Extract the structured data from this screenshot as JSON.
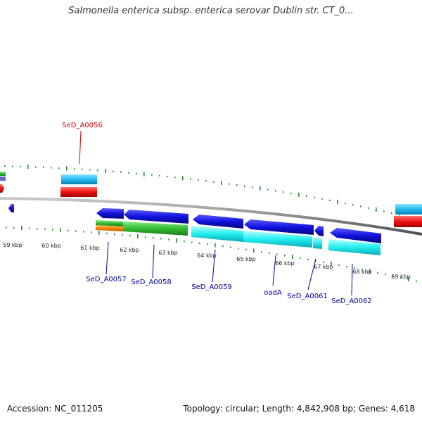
{
  "title": "Salmonella enterica subsp. enterica serovar Dublin str. CT_0...",
  "accession": "Accession: NC_011205",
  "topology": "Topology: circular; Length: 4,842,908 bp; Genes: 4,618",
  "colors": {
    "backbone": "#8c8c8c",
    "ticks": "#2a8a2a",
    "forward_gene": "#22bbee",
    "reverse_gene": "#1111dd",
    "cds_cyan": "#22eeee",
    "rna_red": "#ee1111",
    "green_feature": "#33bb33",
    "orange_feature": "#ff8800",
    "label_blue": "#0000aa",
    "label_red": "#cc0000"
  },
  "kbp_labels": [
    "59 kbp",
    "60 kbp",
    "61 kbp",
    "62 kbp",
    "63 kbp",
    "64 kbp",
    "65 kbp",
    "66 kbp",
    "67 kbp",
    "68 kbp",
    "69 kbp"
  ],
  "gene_labels": {
    "top": [
      "SeD_A0056"
    ],
    "bottom": [
      "SeD_A0057",
      "SeD_A0058",
      "SeD_A0059",
      "oadA",
      "SeD_A0061",
      "SeD_A0062"
    ]
  }
}
